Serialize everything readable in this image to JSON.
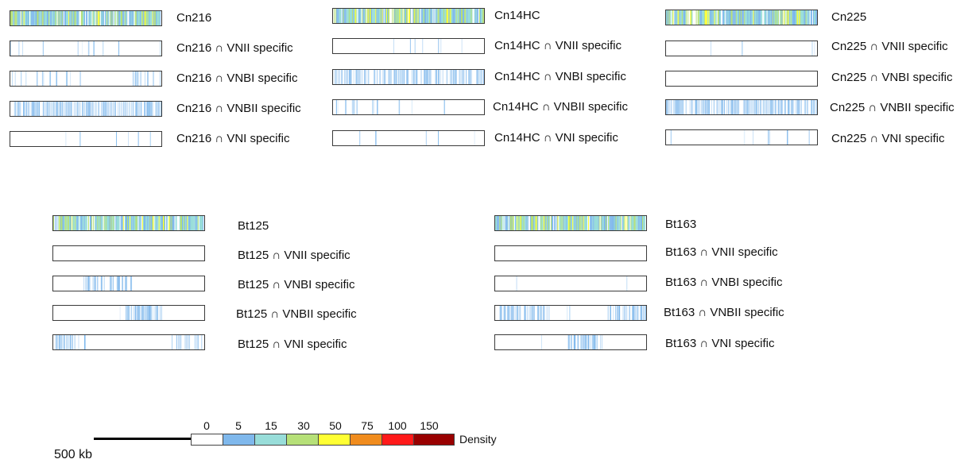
{
  "colors": {
    "outline": "#3a3a3a",
    "density_scale": [
      "#ffffff",
      "#7fb8ec",
      "#98ddd9",
      "#b6e078",
      "#ffff33",
      "#f08c1e",
      "#ff1a1a",
      "#990000"
    ]
  },
  "groups": [
    {
      "tracks": [
        {
          "label": "Cn216",
          "pattern": "full"
        },
        {
          "label": "Cn216 ∩ VNII specific",
          "pattern": "sparse_ends"
        },
        {
          "label": "Cn216 ∩ VNBI specific",
          "pattern": "left_right"
        },
        {
          "label": "Cn216 ∩ VNBII specific",
          "pattern": "dense"
        },
        {
          "label": "Cn216 ∩ VNI specific",
          "pattern": "very_sparse"
        }
      ]
    },
    {
      "tracks": [
        {
          "label": "Cn14HC",
          "pattern": "full"
        },
        {
          "label": "Cn14HC ∩ VNII specific",
          "pattern": "very_sparse"
        },
        {
          "label": "Cn14HC ∩ VNBI specific",
          "pattern": "dense"
        },
        {
          "label": "Cn14HC ∩ VNBII specific",
          "pattern": "left_sparse"
        },
        {
          "label": "Cn14HC ∩ VNI specific",
          "pattern": "very_sparse"
        }
      ]
    },
    {
      "tracks": [
        {
          "label": "Cn225",
          "pattern": "full"
        },
        {
          "label": "Cn225 ∩ VNII specific",
          "pattern": "very_sparse"
        },
        {
          "label": "Cn225 ∩ VNBI specific",
          "pattern": "empty"
        },
        {
          "label": "Cn225 ∩ VNBII specific",
          "pattern": "dense"
        },
        {
          "label": "Cn225 ∩ VNI specific",
          "pattern": "very_sparse"
        }
      ]
    },
    {
      "tracks": [
        {
          "label": "Bt125",
          "pattern": "full"
        },
        {
          "label": "Bt125 ∩ VNII specific",
          "pattern": "empty"
        },
        {
          "label": "Bt125 ∩ VNBI specific",
          "pattern": "block_left"
        },
        {
          "label": "Bt125 ∩ VNBII specific",
          "pattern": "block_mid"
        },
        {
          "label": "Bt125 ∩ VNI specific",
          "pattern": "ends"
        }
      ]
    },
    {
      "tracks": [
        {
          "label": "Bt163",
          "pattern": "full"
        },
        {
          "label": "Bt163 ∩ VNII specific",
          "pattern": "empty"
        },
        {
          "label": "Bt163 ∩ VNBI specific",
          "pattern": "two_lines"
        },
        {
          "label": "Bt163 ∩ VNBII specific",
          "pattern": "ends_blocks"
        },
        {
          "label": "Bt163 ∩ VNI specific",
          "pattern": "block_mid"
        }
      ]
    }
  ],
  "legend": {
    "values": [
      "0",
      "5",
      "15",
      "30",
      "50",
      "75",
      "100",
      "150"
    ],
    "label": "Density",
    "scale_label": "500 kb"
  }
}
